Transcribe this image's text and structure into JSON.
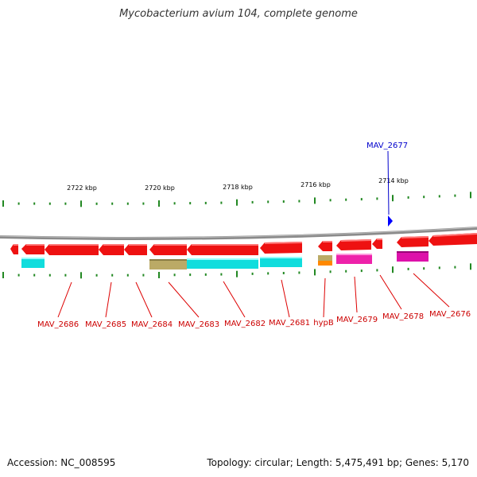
{
  "title": "Mycobacterium avium 104, complete genome",
  "footer": {
    "accession": "Accession: NC_008595",
    "summary": "Topology: circular; Length: 5,475,491 bp; Genes: 5,170"
  },
  "colors": {
    "backbone": "#888888",
    "tick": "#228822",
    "gene_forward": "#ee1111",
    "label_red": "#cc0000",
    "label_blue": "#0000cc",
    "marker": "#0000ff"
  },
  "kbp_ticks": [
    "2722 kbp",
    "2720 kbp",
    "2718 kbp",
    "2716 kbp",
    "2714 kbp"
  ],
  "genes": [
    {
      "name": "MAV_2686"
    },
    {
      "name": "MAV_2685"
    },
    {
      "name": "MAV_2684"
    },
    {
      "name": "MAV_2683"
    },
    {
      "name": "MAV_2682"
    },
    {
      "name": "MAV_2681"
    },
    {
      "name": "hypB"
    },
    {
      "name": "MAV_2679"
    },
    {
      "name": "MAV_2678"
    },
    {
      "name": "MAV_2676"
    }
  ],
  "highlighted_gene": "MAV_2677"
}
